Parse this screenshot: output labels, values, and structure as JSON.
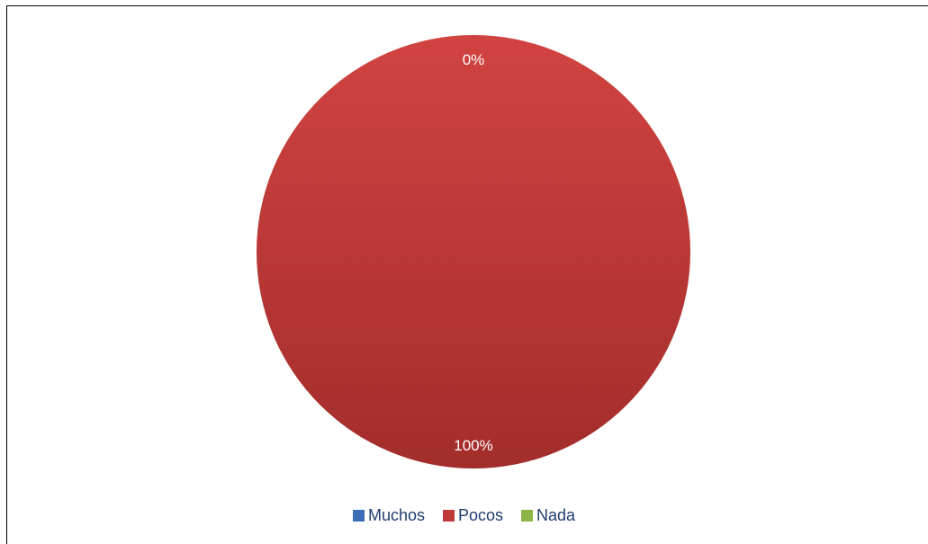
{
  "chart_data": {
    "type": "pie",
    "categories": [
      "Muchos",
      "Pocos",
      "Nada"
    ],
    "values": [
      0,
      100,
      0
    ],
    "data_labels": [
      "0%",
      "100%",
      "0%"
    ],
    "colors": [
      "#3a6db5",
      "#c0393a",
      "#8db545"
    ],
    "legend_position": "bottom",
    "title": ""
  }
}
